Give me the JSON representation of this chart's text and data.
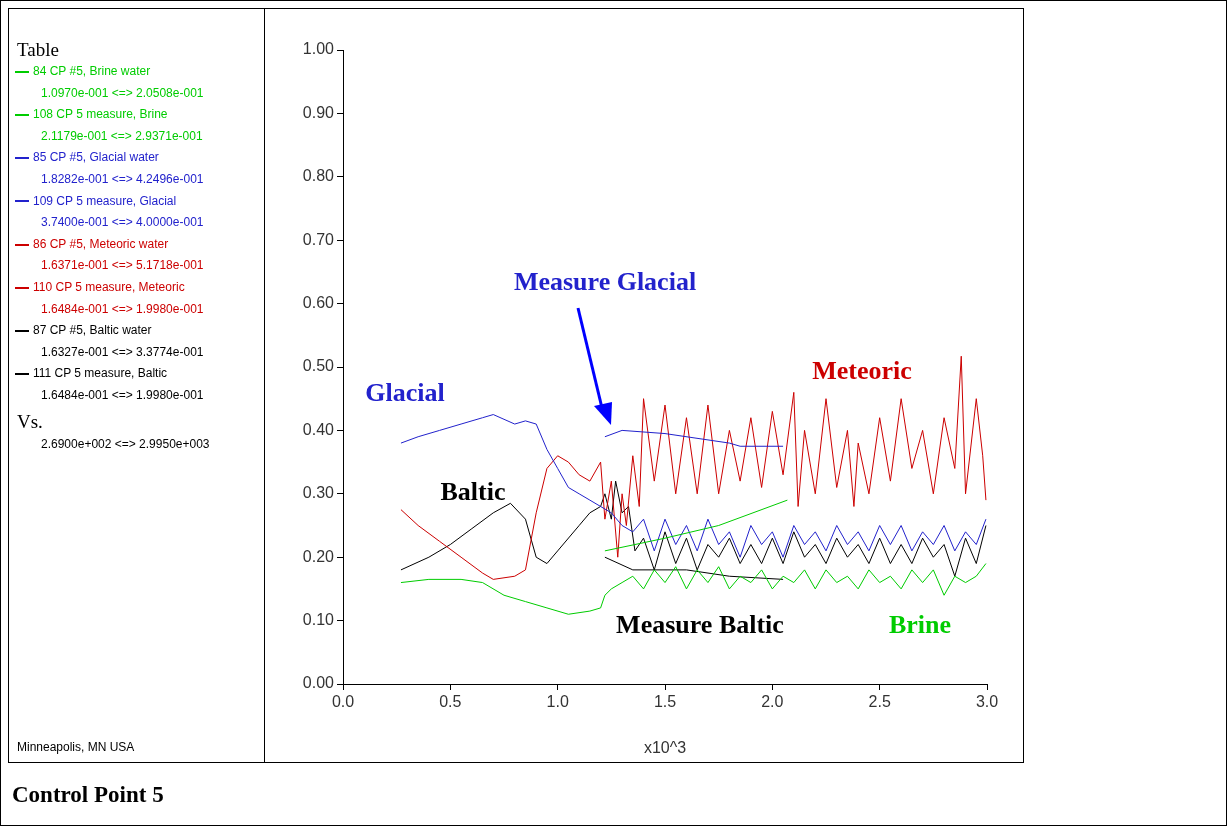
{
  "chart_data": {
    "type": "line",
    "title": "Control Point 5",
    "xlabel": "x10^3",
    "legend_title": "Table",
    "legend": "left",
    "xlim": [
      0,
      3
    ],
    "xticks": [
      {
        "value": 0,
        "label": "0.0"
      },
      {
        "value": 0.5,
        "label": "0.5"
      },
      {
        "value": 1,
        "label": "1.0"
      },
      {
        "value": 1.5,
        "label": "1.5"
      },
      {
        "value": 2,
        "label": "2.0"
      },
      {
        "value": 2.5,
        "label": "2.5"
      },
      {
        "value": 3,
        "label": "3.0"
      }
    ],
    "ylim": [
      0,
      1
    ],
    "yticks": [
      {
        "value": 0,
        "label": "0.00"
      },
      {
        "value": 0.1,
        "label": "0.10"
      },
      {
        "value": 0.2,
        "label": "0.20"
      },
      {
        "value": 0.3,
        "label": "0.30"
      },
      {
        "value": 0.4,
        "label": "0.40"
      },
      {
        "value": 0.5,
        "label": "0.50"
      },
      {
        "value": 0.6,
        "label": "0.60"
      },
      {
        "value": 0.7,
        "label": "0.70"
      },
      {
        "value": 0.8,
        "label": "0.80"
      },
      {
        "value": 0.9,
        "label": "0.90"
      },
      {
        "value": 1,
        "label": "1.00"
      }
    ],
    "marker": "none",
    "line_style": "solid",
    "series": [
      {
        "name": "84 CP #5, Brine water",
        "color": "#00cc00",
        "x": [
          0.27,
          0.4,
          0.55,
          0.65,
          0.75,
          0.85,
          0.95,
          1.05,
          1.15,
          1.2,
          1.22,
          1.25,
          1.3,
          1.35,
          1.4,
          1.45,
          1.5,
          1.55,
          1.6,
          1.65,
          1.7,
          1.75,
          1.8,
          1.85,
          1.9,
          1.95,
          2.0,
          2.05,
          2.1,
          2.15,
          2.2,
          2.25,
          2.3,
          2.35,
          2.4,
          2.45,
          2.5,
          2.55,
          2.6,
          2.65,
          2.7,
          2.75,
          2.8,
          2.85,
          2.9,
          2.95,
          2.995
        ],
        "values": [
          0.16,
          0.165,
          0.165,
          0.16,
          0.14,
          0.13,
          0.12,
          0.11,
          0.115,
          0.12,
          0.14,
          0.15,
          0.16,
          0.17,
          0.15,
          0.18,
          0.16,
          0.185,
          0.15,
          0.18,
          0.16,
          0.185,
          0.15,
          0.17,
          0.16,
          0.18,
          0.15,
          0.17,
          0.16,
          0.18,
          0.15,
          0.18,
          0.16,
          0.17,
          0.15,
          0.18,
          0.16,
          0.17,
          0.15,
          0.18,
          0.16,
          0.18,
          0.14,
          0.17,
          0.16,
          0.17,
          0.19
        ]
      },
      {
        "name": "108 CP 5 measure, Brine",
        "color": "#00cc00",
        "x": [
          1.22,
          1.5,
          1.75,
          2.07
        ],
        "values": [
          0.21,
          0.23,
          0.25,
          0.29
        ]
      },
      {
        "name": "85 CP #5, Glacial water",
        "color": "#2222cc",
        "x": [
          0.27,
          0.35,
          0.45,
          0.55,
          0.65,
          0.7,
          0.8,
          0.85,
          0.9,
          0.95,
          1.0,
          1.05,
          1.1,
          1.15,
          1.2,
          1.25,
          1.3,
          1.35,
          1.4,
          1.45,
          1.5,
          1.55,
          1.6,
          1.65,
          1.7,
          1.75,
          1.8,
          1.85,
          1.9,
          1.95,
          2.0,
          2.05,
          2.1,
          2.15,
          2.2,
          2.25,
          2.3,
          2.35,
          2.4,
          2.45,
          2.5,
          2.55,
          2.6,
          2.65,
          2.7,
          2.75,
          2.8,
          2.85,
          2.9,
          2.95,
          2.995
        ],
        "values": [
          0.38,
          0.39,
          0.4,
          0.41,
          0.42,
          0.425,
          0.41,
          0.415,
          0.41,
          0.37,
          0.34,
          0.31,
          0.3,
          0.29,
          0.28,
          0.27,
          0.25,
          0.24,
          0.26,
          0.21,
          0.26,
          0.22,
          0.25,
          0.21,
          0.26,
          0.22,
          0.24,
          0.2,
          0.25,
          0.22,
          0.24,
          0.2,
          0.25,
          0.22,
          0.24,
          0.21,
          0.25,
          0.22,
          0.24,
          0.21,
          0.25,
          0.22,
          0.25,
          0.21,
          0.24,
          0.22,
          0.25,
          0.21,
          0.24,
          0.22,
          0.26
        ]
      },
      {
        "name": "109 CP 5 measure, Glacial",
        "color": "#2222cc",
        "x": [
          1.22,
          1.3,
          1.5,
          1.8,
          1.85,
          2.05
        ],
        "values": [
          0.39,
          0.4,
          0.395,
          0.38,
          0.375,
          0.375
        ]
      },
      {
        "name": "86 CP #5, Meteoric water",
        "color": "#cc0000",
        "x": [
          0.27,
          0.35,
          0.45,
          0.55,
          0.65,
          0.7,
          0.8,
          0.85,
          0.9,
          0.95,
          1.0,
          1.05,
          1.1,
          1.15,
          1.2,
          1.22,
          1.25,
          1.28,
          1.3,
          1.32,
          1.35,
          1.38,
          1.4,
          1.45,
          1.5,
          1.55,
          1.6,
          1.65,
          1.7,
          1.75,
          1.8,
          1.85,
          1.9,
          1.95,
          2.0,
          2.05,
          2.1,
          2.12,
          2.15,
          2.2,
          2.25,
          2.3,
          2.35,
          2.38,
          2.4,
          2.45,
          2.5,
          2.55,
          2.6,
          2.65,
          2.7,
          2.75,
          2.8,
          2.85,
          2.88,
          2.9,
          2.95,
          2.98,
          2.995
        ],
        "values": [
          0.275,
          0.25,
          0.225,
          0.2,
          0.175,
          0.165,
          0.17,
          0.18,
          0.27,
          0.34,
          0.36,
          0.35,
          0.33,
          0.32,
          0.35,
          0.26,
          0.32,
          0.2,
          0.3,
          0.25,
          0.36,
          0.28,
          0.45,
          0.32,
          0.44,
          0.3,
          0.42,
          0.3,
          0.44,
          0.3,
          0.4,
          0.32,
          0.42,
          0.31,
          0.43,
          0.33,
          0.46,
          0.28,
          0.4,
          0.3,
          0.45,
          0.31,
          0.4,
          0.28,
          0.38,
          0.3,
          0.42,
          0.32,
          0.45,
          0.34,
          0.4,
          0.3,
          0.42,
          0.34,
          0.517,
          0.3,
          0.45,
          0.36,
          0.29
        ]
      },
      {
        "name": "110 CP 5 measure, Meteoric",
        "color": "#cc0000"
      },
      {
        "name": "87 CP #5, Baltic water",
        "color": "#000000",
        "x": [
          0.27,
          0.4,
          0.5,
          0.6,
          0.7,
          0.78,
          0.85,
          0.9,
          0.95,
          1.0,
          1.1,
          1.15,
          1.2,
          1.22,
          1.25,
          1.27,
          1.3,
          1.33,
          1.36,
          1.4,
          1.45,
          1.5,
          1.55,
          1.6,
          1.65,
          1.7,
          1.75,
          1.8,
          1.85,
          1.9,
          1.95,
          2.0,
          2.05,
          2.1,
          2.15,
          2.2,
          2.25,
          2.3,
          2.35,
          2.4,
          2.45,
          2.5,
          2.55,
          2.6,
          2.65,
          2.7,
          2.75,
          2.8,
          2.85,
          2.9,
          2.95,
          2.995
        ],
        "values": [
          0.18,
          0.2,
          0.22,
          0.245,
          0.27,
          0.285,
          0.26,
          0.2,
          0.19,
          0.21,
          0.25,
          0.27,
          0.28,
          0.3,
          0.26,
          0.32,
          0.27,
          0.28,
          0.21,
          0.23,
          0.18,
          0.24,
          0.19,
          0.23,
          0.18,
          0.22,
          0.2,
          0.23,
          0.19,
          0.22,
          0.19,
          0.23,
          0.19,
          0.24,
          0.2,
          0.22,
          0.19,
          0.23,
          0.2,
          0.22,
          0.19,
          0.23,
          0.19,
          0.22,
          0.19,
          0.23,
          0.2,
          0.22,
          0.17,
          0.23,
          0.19,
          0.25
        ]
      },
      {
        "name": "111 CP 5 measure, Baltic",
        "color": "#000000",
        "x": [
          1.22,
          1.35,
          1.6,
          1.8,
          2.05
        ],
        "values": [
          0.2,
          0.18,
          0.18,
          0.17,
          0.165
        ]
      }
    ],
    "annotations": [
      "1.0970e-001 <=> 2.0508e-001",
      "2.1179e-001 <=> 2.9371e-001",
      "1.8282e-001 <=> 4.2496e-001",
      "3.7400e-001 <=> 4.0000e-001",
      "1.6371e-001 <=> 5.1718e-001",
      "1.6484e-001 <=> 1.9980e-001",
      "1.6327e-001 <=> 3.3774e-001",
      "1.6484e-001 <=> 1.9980e-001",
      "Measure Glacial",
      "Glacial",
      "Meteoric",
      "Baltic",
      "Measure Baltic",
      "Brine",
      "Vs.",
      "2.6900e+002 <=> 2.9950e+003",
      "Minneapolis, MN USA"
    ]
  }
}
